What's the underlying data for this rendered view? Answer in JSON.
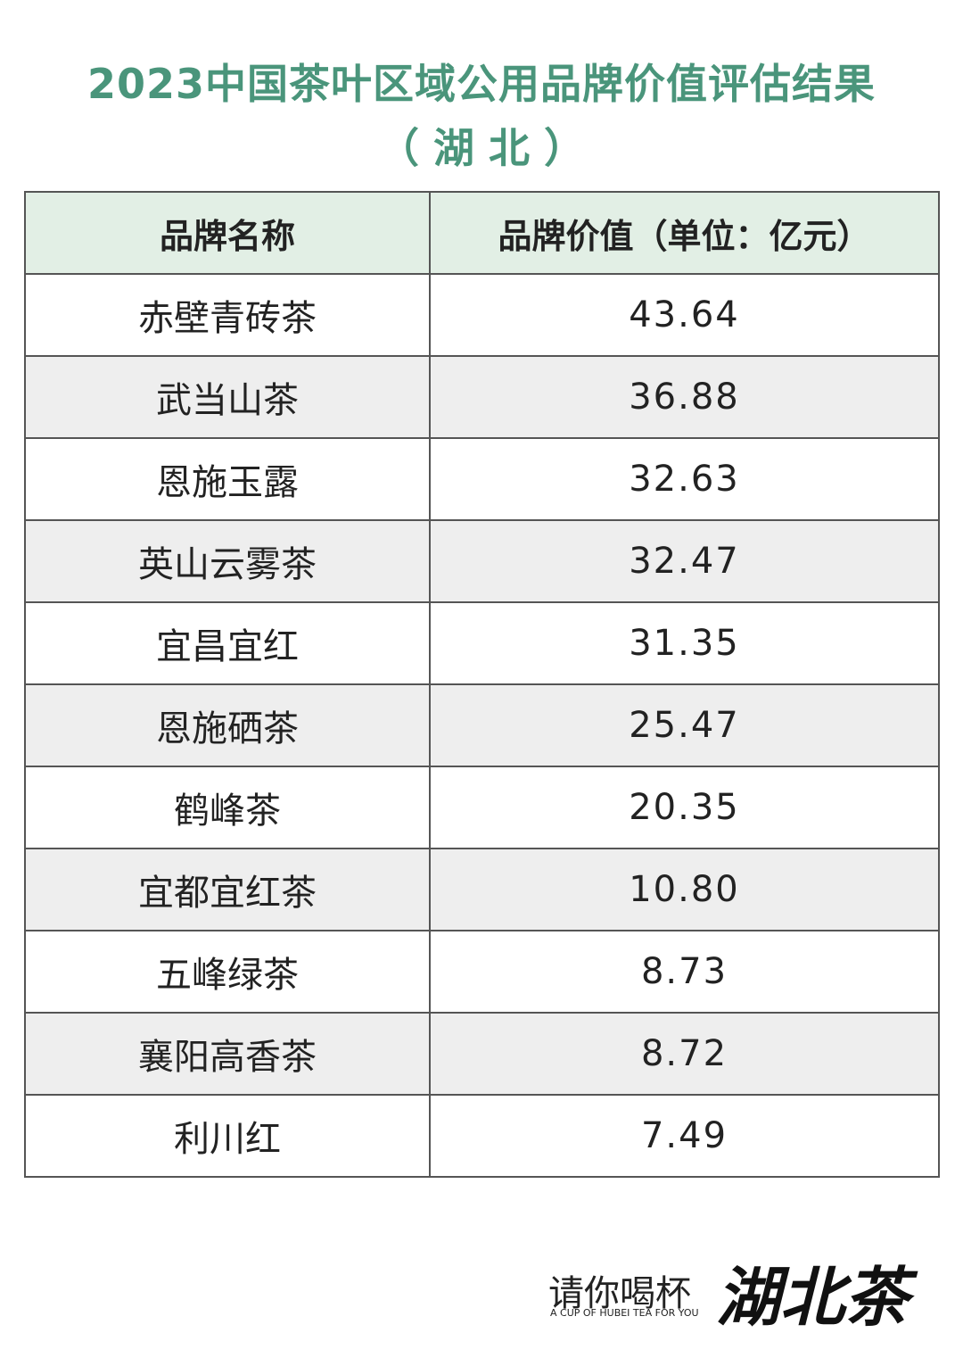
{
  "header": {
    "title": "2023中国茶叶区域公用品牌价值评估结果",
    "subtitle": "（ 湖 北 ）"
  },
  "table": {
    "columns": [
      "品牌名称",
      "品牌价值（单位：亿元）"
    ],
    "rows": [
      [
        "赤壁青砖茶",
        "43.64"
      ],
      [
        "武当山茶",
        "36.88"
      ],
      [
        "恩施玉露",
        "32.63"
      ],
      [
        "英山云雾茶",
        "32.47"
      ],
      [
        "宜昌宜红",
        "31.35"
      ],
      [
        "恩施硒茶",
        "25.47"
      ],
      [
        "鹤峰茶",
        "20.35"
      ],
      [
        "宜都宜红茶",
        "10.80"
      ],
      [
        "五峰绿茶",
        "8.73"
      ],
      [
        "襄阳高香茶",
        "8.72"
      ],
      [
        "利川红",
        "7.49"
      ]
    ]
  },
  "footer": {
    "slogan": "请你喝杯",
    "brand": "湖北茶",
    "english": "A CUP OF HUBEI TEA FOR YOU"
  }
}
